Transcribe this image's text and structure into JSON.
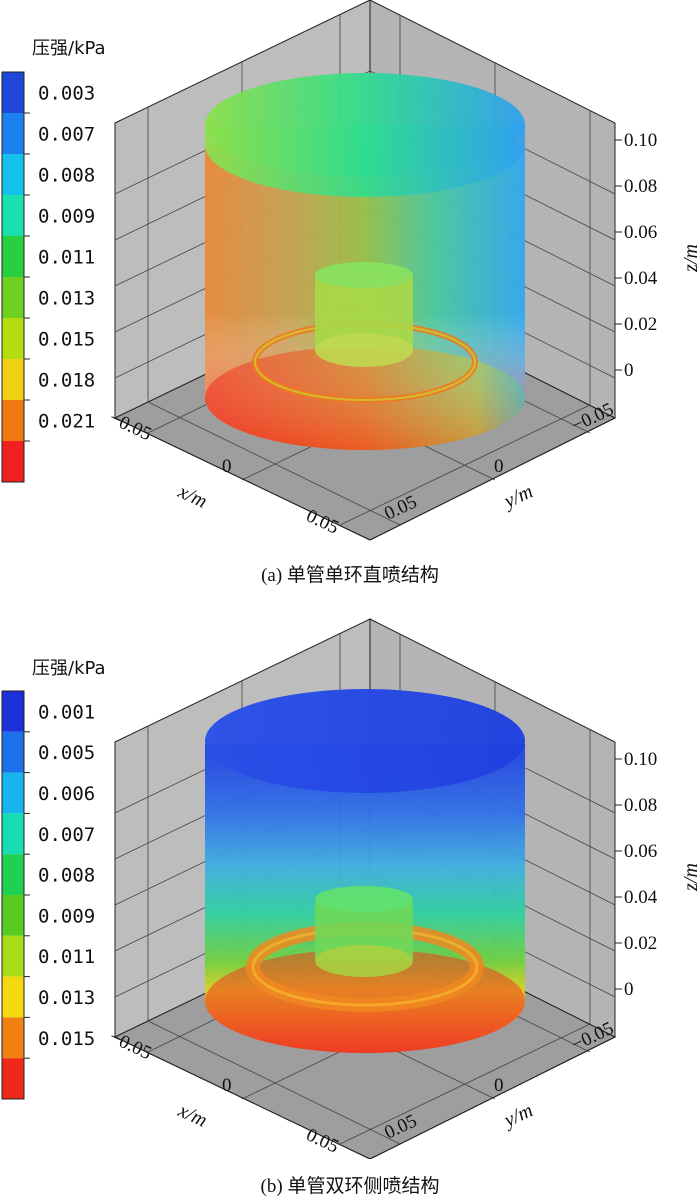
{
  "panels": [
    {
      "id": "a",
      "colorbar_title": "压强/kPa",
      "colorbar_ticks": [
        "0.003",
        "0.007",
        "0.008",
        "0.009",
        "0.011",
        "0.013",
        "0.015",
        "0.018",
        "0.021"
      ],
      "colorbar_colors": [
        "#1e46d8",
        "#1c80ee",
        "#14c0ec",
        "#1ae0b0",
        "#28d040",
        "#6ed020",
        "#b4dc10",
        "#f0d010",
        "#f07810",
        "#f02020"
      ],
      "x_ticks": [
        "−0.05",
        "0",
        "0.05"
      ],
      "y_ticks": [
        "−0.05",
        "0",
        "0.05"
      ],
      "z_ticks": [
        "0.10",
        "0.08",
        "0.06",
        "0.04",
        "0.02",
        "0"
      ],
      "x_label": "x/m",
      "y_label": "y/m",
      "z_label": "z/m",
      "caption": "(a) 单管单环直喷结构"
    },
    {
      "id": "b",
      "colorbar_title": "压强/kPa",
      "colorbar_ticks": [
        "0.001",
        "0.005",
        "0.006",
        "0.007",
        "0.008",
        "0.009",
        "0.011",
        "0.013",
        "0.015"
      ],
      "colorbar_colors": [
        "#1a30d8",
        "#1c70ea",
        "#18b4ee",
        "#18dcb4",
        "#20d050",
        "#58cc20",
        "#a8dc18",
        "#f4d810",
        "#f08010",
        "#f02818"
      ],
      "x_ticks": [
        "−0.05",
        "0",
        "0.05"
      ],
      "y_ticks": [
        "−0.05",
        "0",
        "0.05"
      ],
      "z_ticks": [
        "0.10",
        "0.08",
        "0.06",
        "0.04",
        "0.02",
        "0"
      ],
      "x_label": "x/m",
      "y_label": "y/m",
      "z_label": "z/m",
      "caption": "(b) 单管双环侧喷结构"
    }
  ]
}
